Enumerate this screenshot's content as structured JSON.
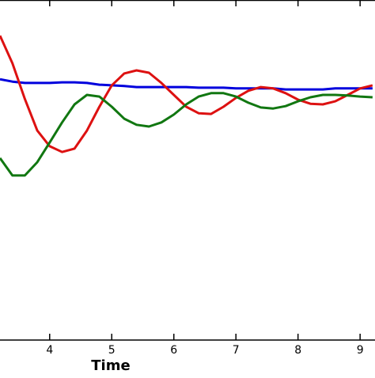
{
  "chart_data": {
    "type": "line",
    "xlabel": "Time",
    "x": [
      3.2,
      3.4,
      3.6,
      3.8,
      4.0,
      4.2,
      4.4,
      4.6,
      4.8,
      5.0,
      5.2,
      5.4,
      5.6,
      5.8,
      6.0,
      6.2,
      6.4,
      6.6,
      6.8,
      7.0,
      7.2,
      7.4,
      7.6,
      7.8,
      8.0,
      8.2,
      8.4,
      8.6,
      8.8,
      9.0,
      9.2
    ],
    "series": [
      {
        "color": "#0000dd",
        "values": [
          0.767,
          0.76,
          0.756,
          0.756,
          0.756,
          0.758,
          0.758,
          0.756,
          0.751,
          0.749,
          0.747,
          0.744,
          0.744,
          0.744,
          0.744,
          0.744,
          0.742,
          0.742,
          0.742,
          0.74,
          0.74,
          0.74,
          0.74,
          0.737,
          0.737,
          0.737,
          0.737,
          0.74,
          0.74,
          0.74,
          0.74
        ]
      },
      {
        "color": "#dd1111",
        "values": [
          0.895,
          0.814,
          0.709,
          0.616,
          0.57,
          0.553,
          0.563,
          0.616,
          0.686,
          0.749,
          0.784,
          0.793,
          0.786,
          0.756,
          0.721,
          0.686,
          0.667,
          0.665,
          0.686,
          0.712,
          0.733,
          0.744,
          0.74,
          0.726,
          0.707,
          0.695,
          0.693,
          0.702,
          0.721,
          0.74,
          0.749
        ]
      },
      {
        "color": "#117711",
        "values": [
          0.535,
          0.484,
          0.484,
          0.523,
          0.581,
          0.64,
          0.693,
          0.721,
          0.716,
          0.686,
          0.651,
          0.633,
          0.628,
          0.64,
          0.663,
          0.693,
          0.716,
          0.726,
          0.726,
          0.716,
          0.698,
          0.684,
          0.681,
          0.688,
          0.702,
          0.714,
          0.721,
          0.721,
          0.719,
          0.716,
          0.714
        ]
      }
    ],
    "xlim": [
      3.2,
      9.24
    ],
    "xticks": [
      4,
      5,
      6,
      7,
      8,
      9
    ],
    "ylim": [
      0,
      1
    ]
  }
}
